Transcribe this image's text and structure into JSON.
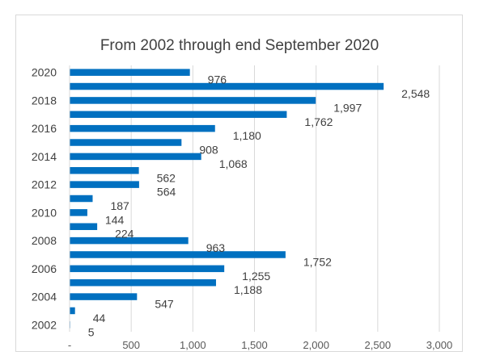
{
  "chart_data": {
    "type": "bar",
    "orientation": "horizontal",
    "title": "From 2002 through end September 2020",
    "categories": [
      "2002",
      "2003",
      "2004",
      "2005",
      "2006",
      "2007",
      "2008",
      "2009",
      "2010",
      "2011",
      "2012",
      "2013",
      "2014",
      "2015",
      "2016",
      "2017",
      "2018",
      "2019",
      "2020"
    ],
    "category_labels_shown": [
      "2002",
      "",
      "2004",
      "",
      "2006",
      "",
      "2008",
      "",
      "2010",
      "",
      "2012",
      "",
      "2014",
      "",
      "2016",
      "",
      "2018",
      "",
      "2020"
    ],
    "values": [
      5,
      44,
      547,
      1188,
      1255,
      1752,
      963,
      224,
      144,
      187,
      564,
      562,
      1068,
      908,
      1180,
      1762,
      1997,
      2548,
      976
    ],
    "data_labels": [
      "5",
      "44",
      "547",
      "1,188",
      "1,255",
      "1,752",
      "963",
      "224",
      "144",
      "187",
      "564",
      "562",
      "1,068",
      "908",
      "1,180",
      "1,762",
      "1,997",
      "2,548",
      "976"
    ],
    "x_ticks": [
      "-",
      "500",
      "1,000",
      "1,500",
      "2,000",
      "2,500",
      "3,000"
    ],
    "xlim": [
      0,
      3000
    ],
    "grid": true,
    "bar_color": "#0070c0",
    "legend": "none"
  }
}
